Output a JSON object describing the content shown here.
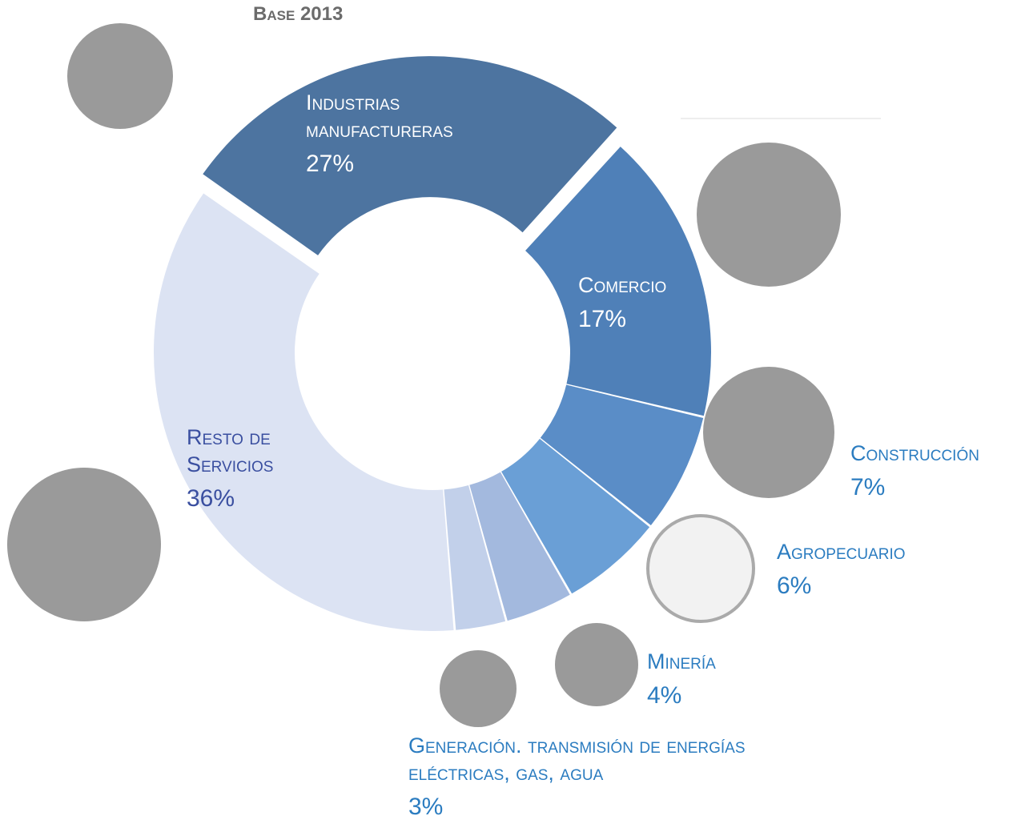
{
  "chart_data": {
    "type": "pie",
    "title": "Base 2013",
    "categories": [
      "Industrias manufactureras",
      "Comercio",
      "Construcción",
      "Agropecuario",
      "Minería",
      "Generación. transmisión de energías eléctricas, gas, agua",
      "Resto de Servicios"
    ],
    "values": [
      27,
      17,
      7,
      6,
      4,
      3,
      36
    ],
    "value_labels": [
      "27%",
      "17%",
      "7%",
      "6%",
      "4%",
      "3%",
      "36%"
    ],
    "colors": [
      "#4d74a0",
      "#4f80b8",
      "#5a8dc7",
      "#6a9fd6",
      "#a3b9de",
      "#c2d0ea",
      "#dce3f3"
    ]
  }
}
